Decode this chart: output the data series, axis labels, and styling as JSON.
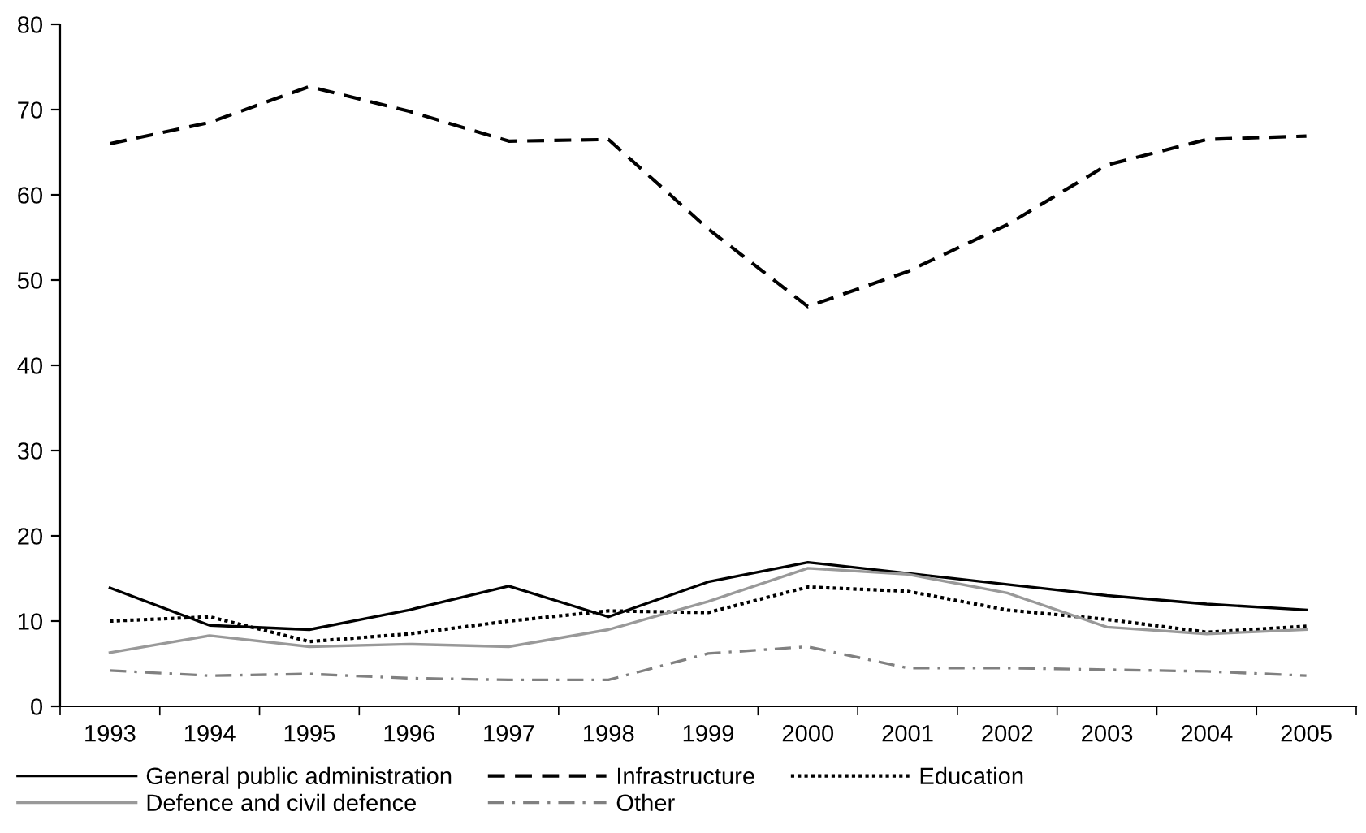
{
  "chart_data": {
    "type": "line",
    "categories": [
      "1993",
      "1994",
      "1995",
      "1996",
      "1997",
      "1998",
      "1999",
      "2000",
      "2001",
      "2002",
      "2003",
      "2004",
      "2005"
    ],
    "ylim": [
      0,
      80
    ],
    "yticks": [
      0,
      10,
      20,
      30,
      40,
      50,
      60,
      70,
      80
    ],
    "grid": false,
    "legend": "bottom",
    "marker": "none",
    "series": [
      {
        "name": "General public administration",
        "color": "#000000",
        "line_style": "solid",
        "values": [
          13.9,
          9.5,
          9.0,
          11.3,
          14.1,
          10.5,
          14.6,
          16.9,
          15.6,
          14.3,
          13.0,
          12.0,
          11.3
        ]
      },
      {
        "name": "Infrastructure",
        "color": "#000000",
        "line_style": "dashed",
        "values": [
          66.0,
          68.5,
          72.7,
          69.8,
          66.3,
          66.5,
          56.0,
          46.9,
          51.0,
          56.5,
          63.5,
          66.5,
          66.9
        ]
      },
      {
        "name": "Education",
        "color": "#000000",
        "line_style": "dotted",
        "values": [
          10.0,
          10.5,
          7.6,
          8.5,
          10.0,
          11.2,
          11.0,
          14.0,
          13.5,
          11.3,
          10.2,
          8.7,
          9.4
        ]
      },
      {
        "name": "Defence and civil defence",
        "color": "#999999",
        "line_style": "solid",
        "values": [
          6.3,
          8.3,
          7.0,
          7.3,
          7.0,
          9.0,
          12.3,
          16.2,
          15.5,
          13.3,
          9.3,
          8.5,
          9.0
        ]
      },
      {
        "name": "Other",
        "color": "#808080",
        "line_style": "dashdot",
        "values": [
          4.2,
          3.6,
          3.8,
          3.3,
          3.1,
          3.1,
          6.2,
          7.0,
          4.5,
          4.5,
          4.3,
          4.1,
          3.6
        ]
      }
    ]
  }
}
